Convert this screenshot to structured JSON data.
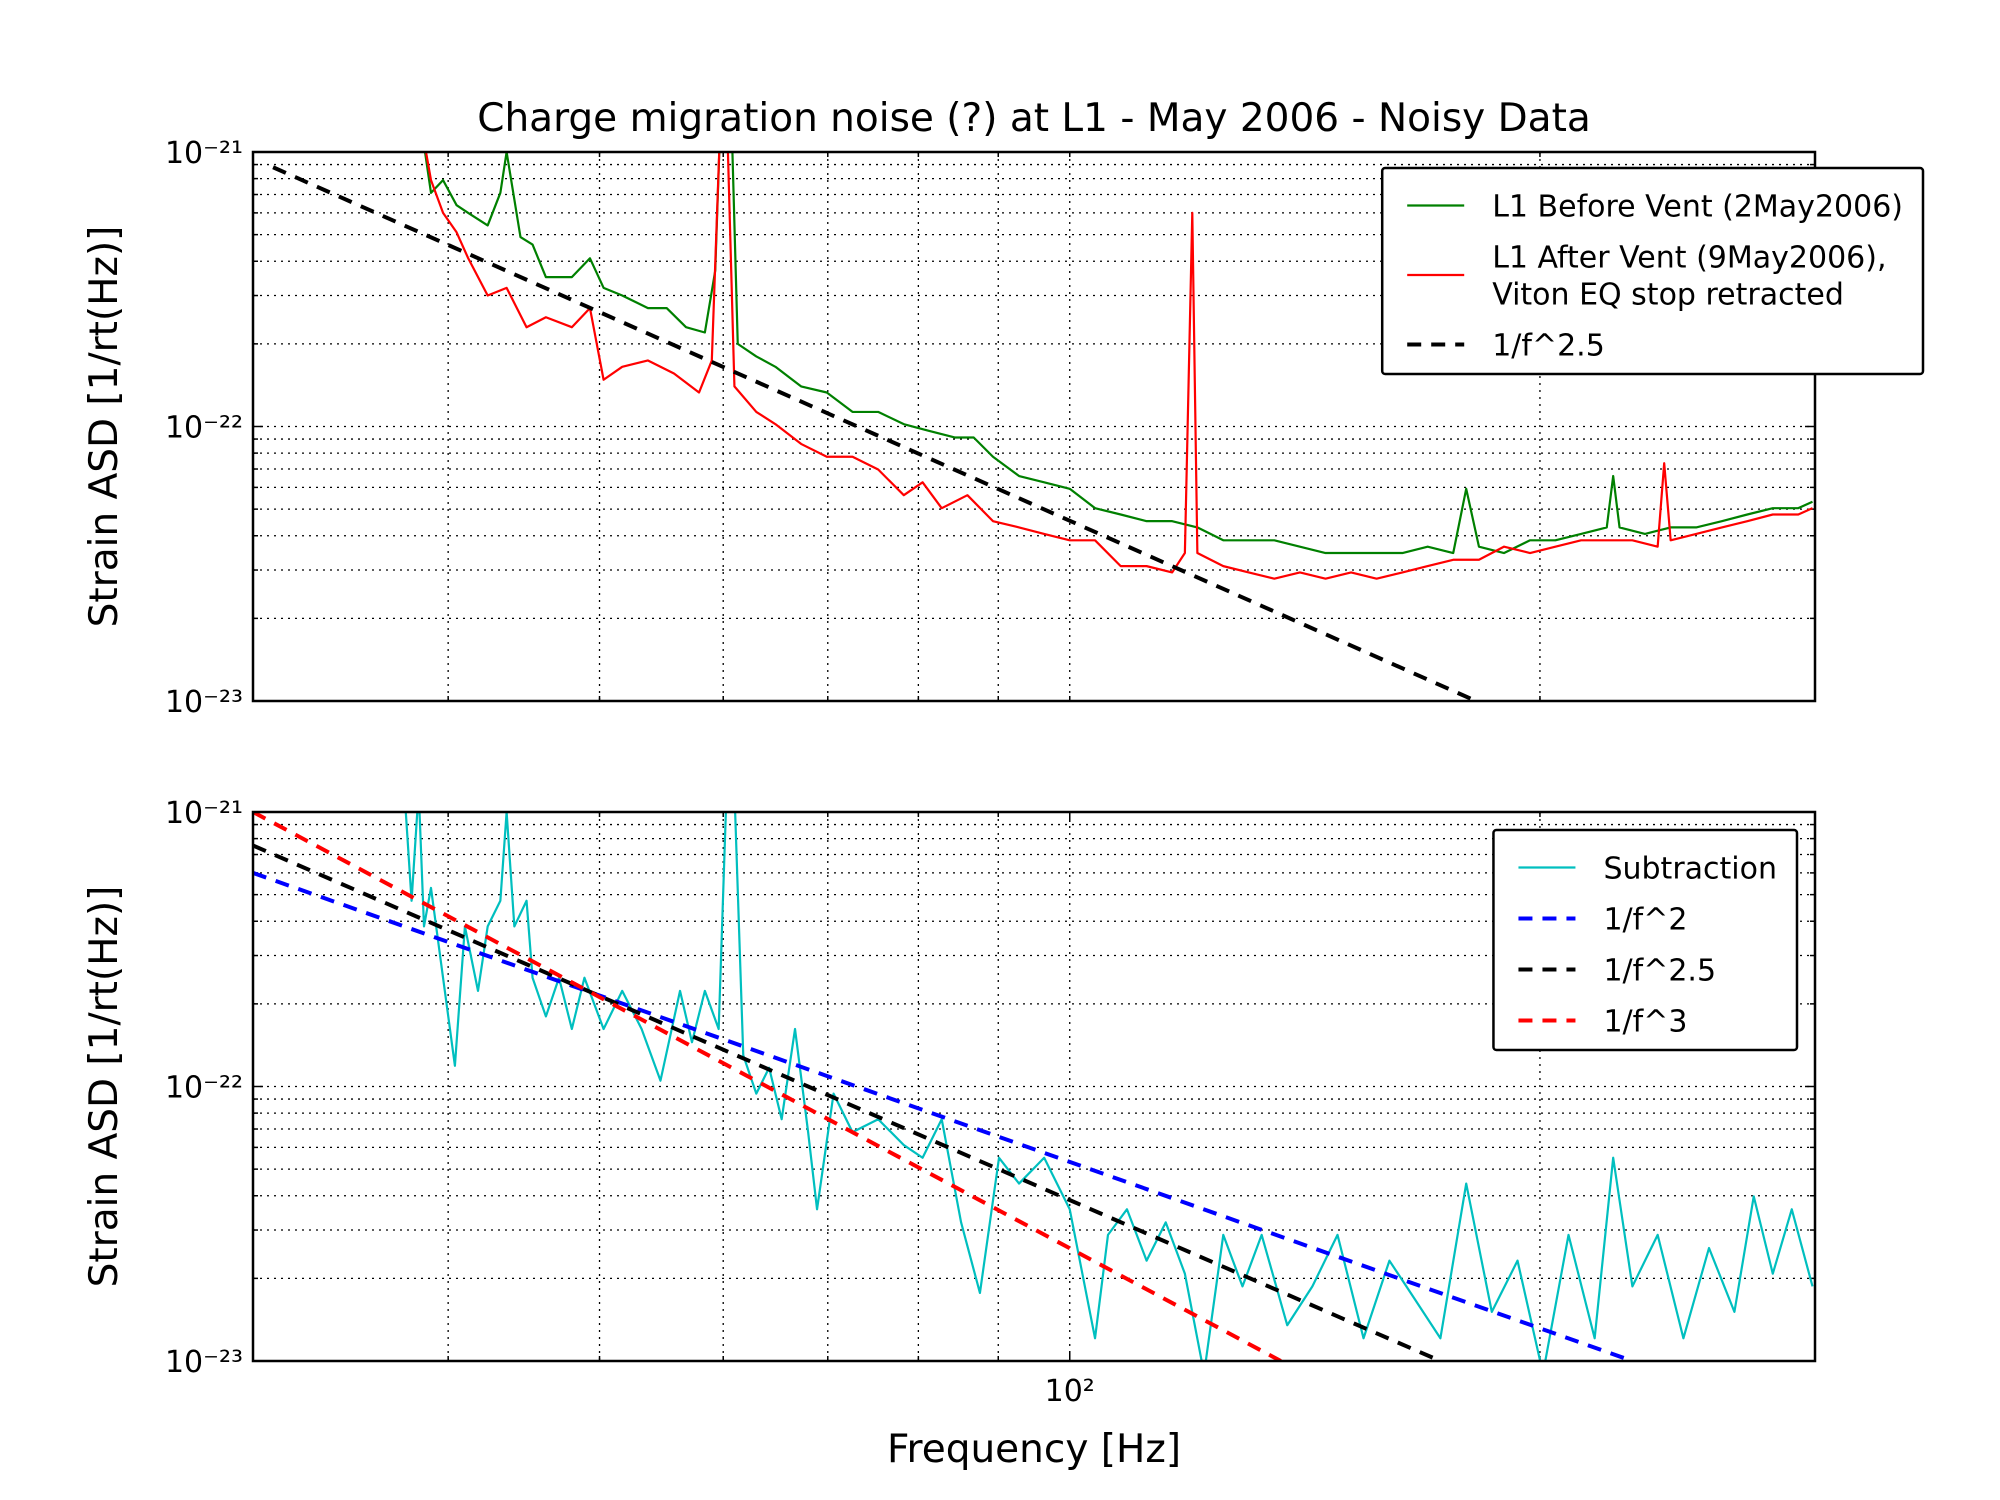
{
  "chart_data": [
    {
      "type": "line",
      "title": "Charge migration noise (?) at L1 - May 2006 - Noisy Data",
      "ylabel": "Strain ASD [1/rt(Hz)]",
      "xscale": "log",
      "yscale": "log",
      "grid": true,
      "legend": "upper right",
      "xlim": [
        30,
        300
      ],
      "ylim": [
        1e-23,
        1e-21
      ],
      "xminorticks": [
        40,
        50,
        60,
        70,
        80,
        90,
        100,
        200
      ],
      "yticks": [
        {
          "value": 1e-23,
          "label": "10⁻²³"
        },
        {
          "value": 1e-22,
          "label": "10⁻²²"
        },
        {
          "value": 1e-21,
          "label": "10⁻²¹"
        }
      ],
      "yminorticks": [
        2e-23,
        3e-23,
        4e-23,
        5e-23,
        6e-23,
        7e-23,
        8e-23,
        9e-23,
        2e-22,
        3e-22,
        4e-22,
        5e-22,
        6e-22,
        7e-22,
        8e-22,
        9e-22
      ],
      "series": [
        {
          "name": "L1 Before Vent (2May2006)",
          "color": "#008000",
          "linestyle": "solid",
          "x": [
            38.4,
            39.0,
            39.7,
            40.5,
            41.2,
            42.4,
            43.2,
            43.6,
            44.5,
            45.3,
            46.2,
            48.0,
            49.3,
            50.3,
            51.7,
            53.7,
            55.2,
            56.8,
            58.4,
            59.3,
            59.8,
            60.7,
            61.3,
            63.0,
            64.8,
            67.3,
            69.9,
            72.6,
            75.4,
            78.3,
            81.3,
            84.4,
            86.8,
            89.3,
            92.8,
            96.3,
            100,
            103.8,
            107.8,
            112.0,
            116.3,
            120.7,
            125.4,
            130.2,
            135.2,
            140.4,
            145.8,
            151.4,
            157.2,
            163.3,
            169.5,
            176.0,
            179.4,
            182.8,
            189.7,
            197.1,
            204.6,
            212.5,
            220.7,
            222.8,
            224.9,
            233.5,
            242.5,
            251.8,
            261.5,
            271.5,
            281.9,
            292.7,
            298.9
          ],
          "values": [
            1.3e-21,
            7.1e-22,
            7.9e-22,
            6.4e-22,
            6e-22,
            5.4e-22,
            7.1e-22,
            1e-21,
            4.9e-22,
            4.6e-22,
            3.5e-22,
            3.5e-22,
            4.1e-22,
            3.2e-22,
            3e-22,
            2.7e-22,
            2.7e-22,
            2.3e-22,
            2.2e-22,
            3.7e-22,
            1.5e-21,
            1.5e-21,
            2e-22,
            1.8e-22,
            1.65e-22,
            1.4e-22,
            1.33e-22,
            1.13e-22,
            1.13e-22,
            1.02e-22,
            9.63e-23,
            9.12e-23,
            9.12e-23,
            7.76e-23,
            6.6e-23,
            6.26e-23,
            5.93e-23,
            5.04e-23,
            4.78e-23,
            4.52e-23,
            4.52e-23,
            4.29e-23,
            3.85e-23,
            3.85e-23,
            3.85e-23,
            3.65e-23,
            3.46e-23,
            3.46e-23,
            3.46e-23,
            3.46e-23,
            3.65e-23,
            3.46e-23,
            5.93e-23,
            3.65e-23,
            3.46e-23,
            3.85e-23,
            3.85e-23,
            4.06e-23,
            4.29e-23,
            6.6e-23,
            4.29e-23,
            4.06e-23,
            4.29e-23,
            4.29e-23,
            4.52e-23,
            4.78e-23,
            5.04e-23,
            5.04e-23,
            5.32e-23
          ]
        },
        {
          "name": "L1 After Vent (9May2006),\nViton EQ stop retracted",
          "color": "#ff0000",
          "linestyle": "solid",
          "x": [
            38.4,
            39.0,
            39.7,
            40.5,
            41.2,
            42.4,
            43.6,
            44.9,
            46.2,
            48.0,
            49.3,
            50.3,
            51.7,
            53.7,
            55.8,
            57.9,
            59.0,
            59.8,
            60.3,
            61.0,
            63.0,
            64.8,
            67.3,
            69.9,
            72.6,
            75.4,
            78.3,
            80.5,
            82.8,
            86.0,
            89.3,
            92.8,
            96.3,
            100,
            103.8,
            107.8,
            112.0,
            116.3,
            118.5,
            119.8,
            120.7,
            125.4,
            130.2,
            135.2,
            140.4,
            145.8,
            151.4,
            157.2,
            163.3,
            169.5,
            176.0,
            182.8,
            189.7,
            197.1,
            204.6,
            212.5,
            220.7,
            229.2,
            237.9,
            240.2,
            242.5,
            251.8,
            261.5,
            271.5,
            281.9,
            292.7,
            298.9
          ],
          "values": [
            1.3e-21,
            7.9e-22,
            6e-22,
            5.1e-22,
            4.1e-22,
            3e-22,
            3.2e-22,
            2.3e-22,
            2.5e-22,
            2.3e-22,
            2.7e-22,
            1.48e-22,
            1.65e-22,
            1.74e-22,
            1.56e-22,
            1.33e-22,
            1.74e-22,
            1.5e-21,
            1.5e-21,
            1.4e-22,
            1.13e-22,
            1.02e-22,
            8.64e-23,
            7.76e-23,
            7.76e-23,
            6.97e-23,
            5.62e-23,
            6.26e-23,
            5.04e-23,
            5.62e-23,
            4.52e-23,
            4.29e-23,
            4.06e-23,
            3.85e-23,
            3.85e-23,
            3.1e-23,
            3.1e-23,
            2.94e-23,
            3.46e-23,
            6e-22,
            3.46e-23,
            3.1e-23,
            2.94e-23,
            2.79e-23,
            2.94e-23,
            2.79e-23,
            2.94e-23,
            2.79e-23,
            2.94e-23,
            3.1e-23,
            3.27e-23,
            3.27e-23,
            3.65e-23,
            3.46e-23,
            3.65e-23,
            3.85e-23,
            3.85e-23,
            3.85e-23,
            3.65e-23,
            7.35e-23,
            3.85e-23,
            4.06e-23,
            4.29e-23,
            4.52e-23,
            4.78e-23,
            4.78e-23,
            5.04e-23
          ]
        },
        {
          "name": "1/f^2.5",
          "color": "#000000",
          "linestyle": "dashed",
          "x": [
            30.9,
            182
          ],
          "values": [
            8.8e-22,
            1e-23
          ]
        }
      ]
    },
    {
      "type": "line",
      "xlabel": "Frequency [Hz]",
      "ylabel": "Strain ASD [1/rt(Hz)]",
      "xscale": "log",
      "yscale": "log",
      "grid": true,
      "legend": "upper right",
      "xlim": [
        30,
        300
      ],
      "ylim": [
        1e-23,
        1e-21
      ],
      "xticks": [
        {
          "value": 100,
          "label": "10²"
        }
      ],
      "xminorticks": [
        40,
        50,
        60,
        70,
        80,
        90,
        200
      ],
      "yticks": [
        {
          "value": 1e-23,
          "label": "10⁻²³"
        },
        {
          "value": 1e-22,
          "label": "10⁻²²"
        },
        {
          "value": 1e-21,
          "label": "10⁻²¹"
        }
      ],
      "yminorticks": [
        2e-23,
        3e-23,
        4e-23,
        5e-23,
        6e-23,
        7e-23,
        8e-23,
        9e-23,
        2e-22,
        3e-22,
        4e-22,
        5e-22,
        6e-22,
        7e-22,
        8e-22,
        9e-22
      ],
      "series": [
        {
          "name": "Subtraction",
          "color": "#00bfbf",
          "linestyle": "solid",
          "x": [
            37.5,
            37.9,
            38.3,
            38.6,
            39.0,
            39.7,
            40.4,
            41.0,
            41.8,
            42.4,
            43.2,
            43.6,
            44.1,
            44.9,
            45.3,
            46.2,
            47.1,
            48.0,
            48.9,
            50.3,
            51.7,
            53.2,
            54.7,
            56.3,
            57.3,
            58.4,
            59.6,
            60.3,
            61.0,
            61.8,
            63.0,
            64.2,
            65.4,
            66.7,
            68.0,
            68.9,
            70.6,
            72.6,
            75.4,
            78.3,
            80.5,
            82.8,
            85.2,
            87.6,
            90.1,
            92.8,
            96.3,
            100,
            103.8,
            105.8,
            108.8,
            112.0,
            115.2,
            118.5,
            121.9,
            125.4,
            129.0,
            132.7,
            137.8,
            143.0,
            148.4,
            154.2,
            160.2,
            166.3,
            172.7,
            179.4,
            186.3,
            193.5,
            200.9,
            208.6,
            216.8,
            222.8,
            229.2,
            237.9,
            247.1,
            256.6,
            266.4,
            274.1,
            281.9,
            289.9,
            298.9
          ],
          "values": [
            1.2e-21,
            4.75e-22,
            1.2e-21,
            3.83e-22,
            5.29e-22,
            2.49e-22,
            1.19e-22,
            3.83e-22,
            2.23e-22,
            3.83e-22,
            4.75e-22,
            1e-21,
            3.83e-22,
            4.75e-22,
            2.49e-22,
            1.8e-22,
            2.49e-22,
            1.62e-22,
            2.49e-22,
            1.62e-22,
            2.23e-22,
            1.62e-22,
            1.05e-22,
            2.23e-22,
            1.45e-22,
            2.23e-22,
            1.62e-22,
            1.2e-21,
            1.2e-21,
            1.3e-22,
            9.42e-23,
            1.17e-22,
            7.6e-23,
            1.62e-22,
            6.82e-23,
            3.57e-23,
            9.42e-23,
            6.82e-23,
            7.6e-23,
            6.12e-23,
            5.5e-23,
            7.6e-23,
            3.2e-23,
            1.77e-23,
            5.5e-23,
            4.43e-23,
            5.5e-23,
            3.57e-23,
            1.21e-23,
            2.88e-23,
            3.57e-23,
            2.32e-23,
            3.2e-23,
            2.08e-23,
            9e-24,
            2.88e-23,
            1.87e-23,
            2.88e-23,
            1.35e-23,
            1.87e-23,
            2.88e-23,
            1.21e-23,
            2.32e-23,
            1.68e-23,
            1.21e-23,
            4.43e-23,
            1.51e-23,
            2.32e-23,
            9e-24,
            2.88e-23,
            1.21e-23,
            5.5e-23,
            1.87e-23,
            2.88e-23,
            1.21e-23,
            2.58e-23,
            1.51e-23,
            3.98e-23,
            2.08e-23,
            3.57e-23,
            1.87e-23
          ]
        },
        {
          "name": "1/f^2",
          "color": "#0000ff",
          "linestyle": "dashed",
          "x": [
            30,
            229.2
          ],
          "values": [
            6e-22,
            1e-23
          ]
        },
        {
          "name": "1/f^2.5",
          "color": "#000000",
          "linestyle": "dashed",
          "x": [
            30,
            172.7
          ],
          "values": [
            7.55e-22,
            1e-23
          ]
        },
        {
          "name": "1/f^3",
          "color": "#ff0000",
          "linestyle": "dashed",
          "x": [
            30,
            136.5
          ],
          "values": [
            1e-21,
            1e-23
          ]
        }
      ]
    }
  ]
}
